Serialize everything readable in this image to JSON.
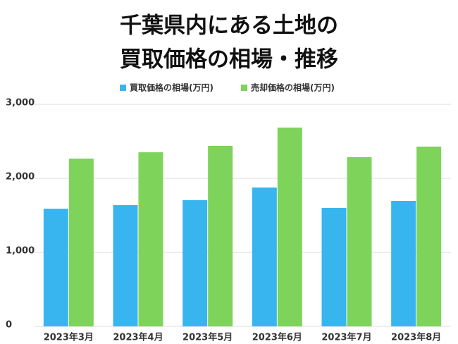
{
  "chart_data": {
    "type": "bar",
    "title": [
      "千葉県内にある土地の",
      "買取価格の相場・推移"
    ],
    "categories": [
      "2023年3月",
      "2023年4月",
      "2023年5月",
      "2023年6月",
      "2023年7月",
      "2023年8月"
    ],
    "series": [
      {
        "name": "買取価格の相場(万円)",
        "color": "#38b5ef",
        "values": [
          1590,
          1638,
          1705,
          1876,
          1600,
          1695
        ]
      },
      {
        "name": "売却価格の相場(万円)",
        "color": "#7ed35b",
        "values": [
          2267,
          2352,
          2438,
          2686,
          2286,
          2429
        ]
      }
    ],
    "ylim": [
      0,
      3000
    ],
    "yticks": [
      0,
      {
        "value": 1000,
        "label": "1,000"
      },
      {
        "value": 2000,
        "label": "2,000"
      },
      {
        "value": 3000,
        "label": "3,000"
      }
    ],
    "grid": true,
    "legend": "top"
  }
}
